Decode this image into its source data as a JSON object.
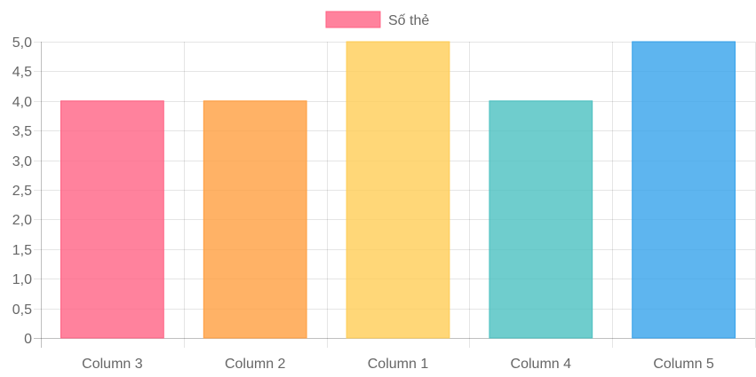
{
  "chart_data": {
    "type": "bar",
    "categories": [
      "Column 3",
      "Column 2",
      "Column 1",
      "Column 4",
      "Column 5"
    ],
    "series": [
      {
        "name": "Số thẻ",
        "values": [
          4,
          4,
          5,
          4,
          5
        ]
      }
    ],
    "bar_colors": [
      "#ff6384",
      "#ff9f40",
      "#ffcd56",
      "#4bc0c0",
      "#36a2eb"
    ],
    "title": "",
    "xlabel": "",
    "ylabel": "",
    "ylim": [
      0,
      5
    ],
    "y_ticks": [
      "0",
      "0,5",
      "1,0",
      "1,5",
      "2,0",
      "2,5",
      "3,0",
      "3,5",
      "4,0",
      "4,5",
      "5,0"
    ],
    "grid": true,
    "legend": "top-center"
  }
}
